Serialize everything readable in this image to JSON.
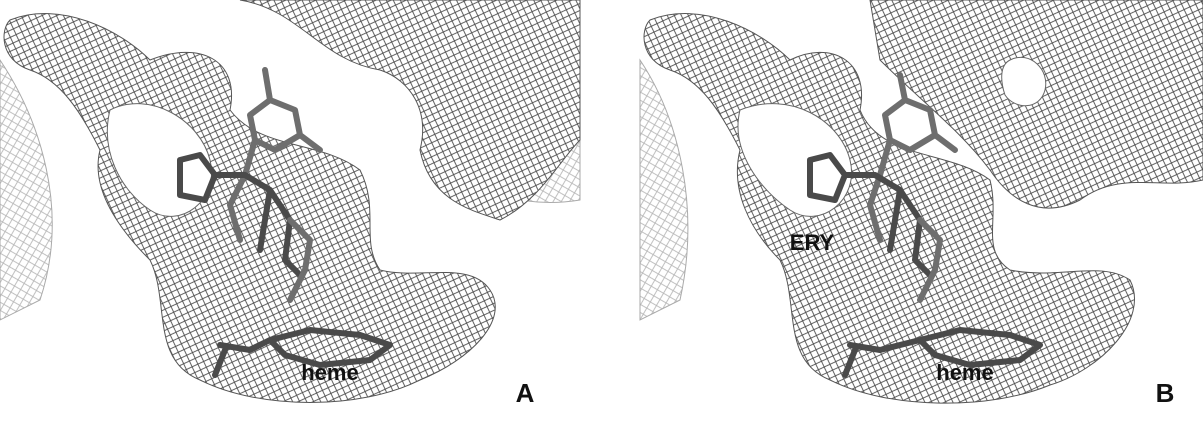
{
  "panels": [
    {
      "label": "A",
      "annotations": [
        "heme"
      ]
    },
    {
      "label": "B",
      "annotations": [
        "ERY",
        "heme"
      ]
    }
  ]
}
